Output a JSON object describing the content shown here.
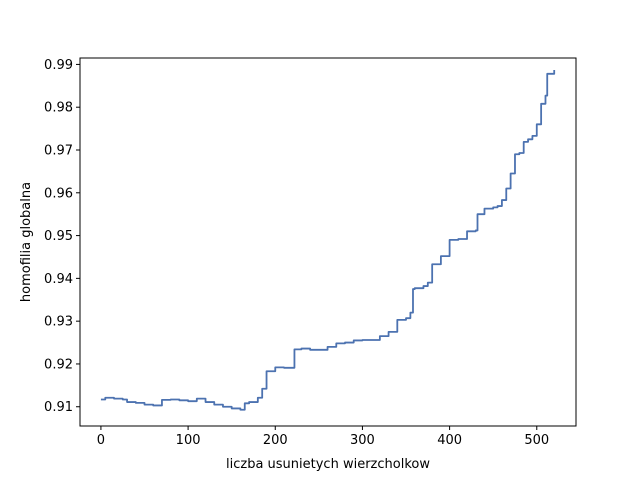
{
  "chart_data": {
    "type": "line",
    "title": "",
    "xlabel": "liczba usunietych wierzcholkow",
    "ylabel": "homofilia globalna",
    "xlim": [
      -24,
      545
    ],
    "ylim": [
      0.9055,
      0.9915
    ],
    "xticks": [
      0,
      100,
      200,
      300,
      400,
      500
    ],
    "xtick_labels": [
      "0",
      "100",
      "200",
      "300",
      "400",
      "500"
    ],
    "yticks": [
      0.91,
      0.92,
      0.93,
      0.94,
      0.95,
      0.96,
      0.97,
      0.98,
      0.99
    ],
    "ytick_labels": [
      "0.91",
      "0.92",
      "0.93",
      "0.94",
      "0.95",
      "0.96",
      "0.97",
      "0.98",
      "0.99"
    ],
    "grid": false,
    "legend": "none",
    "line_color": "#4c72b0",
    "series": [
      {
        "x": [
          0,
          5,
          10,
          15,
          20,
          25,
          30,
          40,
          50,
          60,
          70,
          80,
          90,
          100,
          110,
          120,
          130,
          140,
          150,
          160,
          165,
          170,
          180,
          185,
          190,
          200,
          210,
          219,
          222,
          230,
          240,
          250,
          260,
          270,
          280,
          290,
          300,
          310,
          320,
          330,
          340,
          345,
          350,
          355,
          358,
          360,
          370,
          375,
          380,
          390,
          400,
          410,
          420,
          430,
          432,
          440,
          450,
          455,
          460,
          465,
          470,
          475,
          480,
          485,
          490,
          495,
          500,
          505,
          510,
          512,
          520
        ],
        "y": [
          0.9117,
          0.9121,
          0.9121,
          0.9119,
          0.9119,
          0.9117,
          0.9111,
          0.9109,
          0.9105,
          0.9103,
          0.9116,
          0.9117,
          0.9115,
          0.9113,
          0.9119,
          0.9111,
          0.9105,
          0.91,
          0.9096,
          0.9093,
          0.9108,
          0.9111,
          0.9121,
          0.9142,
          0.9183,
          0.9192,
          0.9191,
          0.9191,
          0.9234,
          0.9236,
          0.9233,
          0.9233,
          0.924,
          0.9248,
          0.925,
          0.9255,
          0.9256,
          0.9256,
          0.9265,
          0.9275,
          0.9303,
          0.9303,
          0.9307,
          0.932,
          0.9375,
          0.9377,
          0.9382,
          0.939,
          0.9433,
          0.9452,
          0.949,
          0.9492,
          0.951,
          0.9512,
          0.955,
          0.9563,
          0.9566,
          0.9569,
          0.9583,
          0.961,
          0.9645,
          0.969,
          0.9693,
          0.9719,
          0.9725,
          0.9733,
          0.976,
          0.9808,
          0.9827,
          0.9878,
          0.9887
        ]
      }
    ]
  }
}
